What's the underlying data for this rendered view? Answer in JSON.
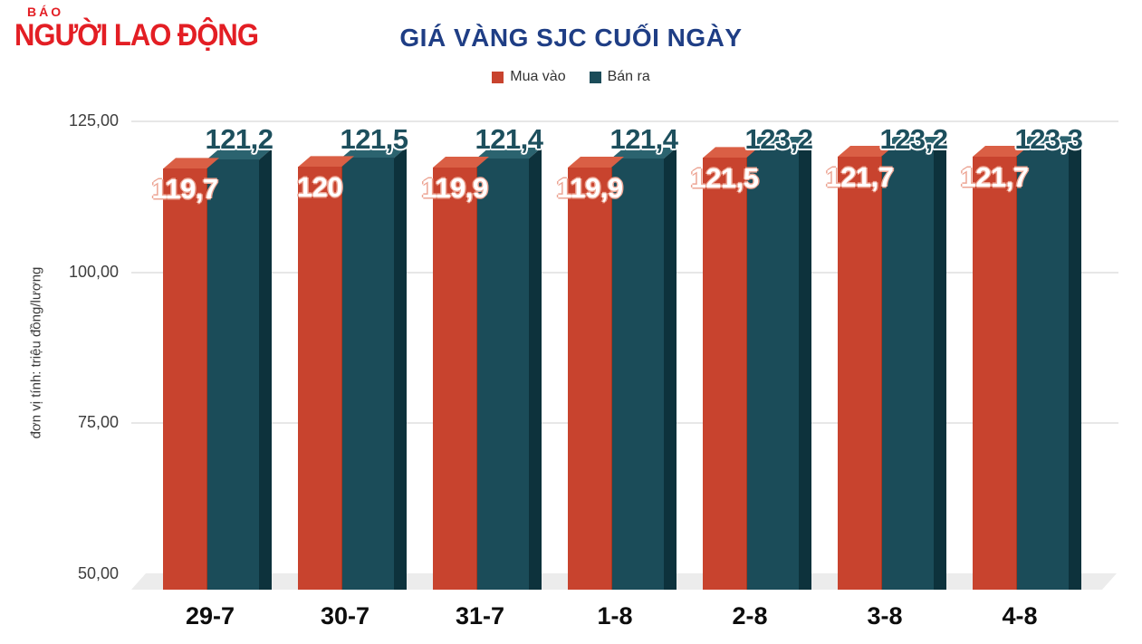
{
  "logo": {
    "small": "BÁO",
    "main": "NGƯỜI LAO ĐỘNG",
    "color": "#e31e24"
  },
  "header": {
    "title_color": "#1f3e85"
  },
  "chart_data": {
    "type": "bar",
    "style": "3d-column",
    "title": "GIÁ VÀNG SJC CUỐI NGÀY",
    "ylabel": "đơn vị tính: triệu đồng/lượng",
    "xlabel": "",
    "grid": true,
    "legend_position": "top",
    "ylim": [
      50,
      125
    ],
    "categories": [
      "29-7",
      "30-7",
      "31-7",
      "1-8",
      "2-8",
      "3-8",
      "4-8"
    ],
    "series": [
      {
        "name": "Mua vào",
        "values": [
          119.7,
          120,
          119.9,
          119.9,
          121.5,
          121.7,
          121.7
        ],
        "labels": [
          "119,7",
          "120",
          "119,9",
          "119,9",
          "121,5",
          "121,7",
          "121,7"
        ],
        "color_front": "#c8432e",
        "color_top": "#da5f45",
        "color_edge": "#a4371f",
        "label_color": "#ffffff"
      },
      {
        "name": "Bán ra",
        "values": [
          121.2,
          121.5,
          121.4,
          121.4,
          123.2,
          123.2,
          123.3
        ],
        "labels": [
          "121,2",
          "121,5",
          "121,4",
          "121,4",
          "123,2",
          "123,2",
          "123,3"
        ],
        "color_front": "#1b4c59",
        "color_top": "#2b636f",
        "color_side": "#0d323c",
        "label_color": "#1d4f5d"
      }
    ],
    "yticks": [
      {
        "value": 125,
        "label": "125,00"
      },
      {
        "value": 100,
        "label": "100,00"
      },
      {
        "value": 75,
        "label": "75,00"
      },
      {
        "value": 50,
        "label": "50,00"
      }
    ]
  }
}
